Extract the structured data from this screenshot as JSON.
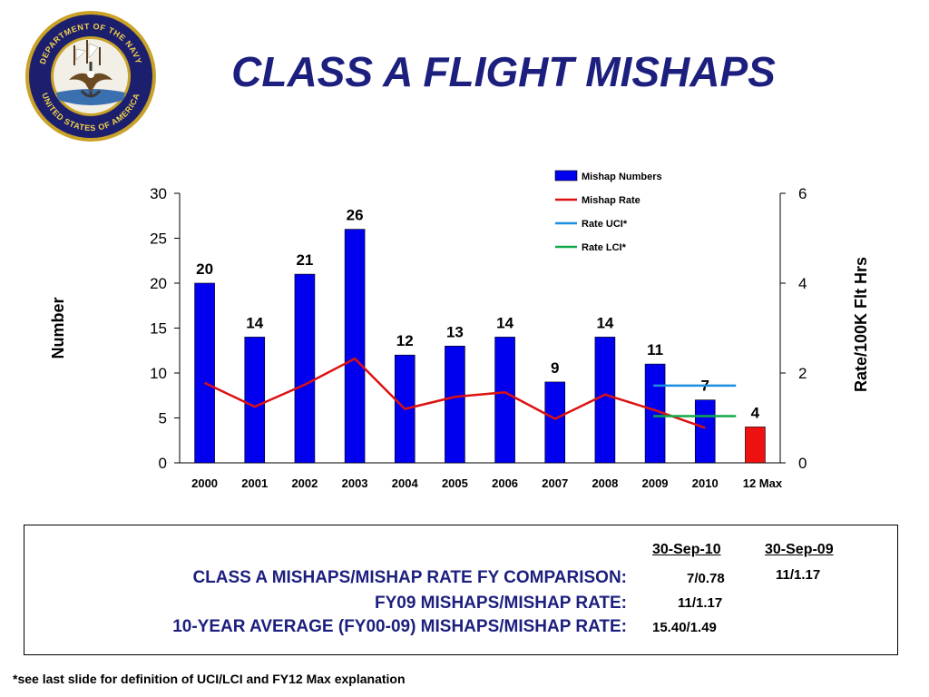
{
  "title": "CLASS A FLIGHT MISHAPS",
  "seal": {
    "outer_text": "DEPARTMENT OF THE NAVY",
    "inner_text": "UNITED STATES OF AMERICA"
  },
  "chart_data": {
    "type": "bar",
    "categories": [
      "2000",
      "2001",
      "2002",
      "2003",
      "2004",
      "2005",
      "2006",
      "2007",
      "2008",
      "2009",
      "2010",
      "12 Max"
    ],
    "series": [
      {
        "name": "Mishap Numbers",
        "type": "bar",
        "axis": "left",
        "values": [
          20,
          14,
          21,
          26,
          12,
          13,
          14,
          9,
          14,
          11,
          7,
          4
        ],
        "data_labels": [
          "20",
          "14",
          "21",
          "26",
          "12",
          "13",
          "14",
          "9",
          "14",
          "11",
          "7",
          "4"
        ],
        "color": "#0000ee",
        "highlight_color": "#ee1111",
        "highlight_index": 11
      },
      {
        "name": "Mishap Rate",
        "type": "line",
        "axis": "right",
        "values": [
          1.78,
          1.25,
          1.74,
          2.32,
          1.2,
          1.47,
          1.57,
          0.98,
          1.52,
          1.17,
          0.78,
          null
        ],
        "color": "#dd1111"
      },
      {
        "name": "Rate UCI*",
        "type": "segment",
        "axis": "right",
        "x_start": "2009",
        "x_end": "2010",
        "value": 1.72,
        "color": "#1b8fe0"
      },
      {
        "name": "Rate LCI*",
        "type": "segment",
        "axis": "right",
        "x_start": "2009",
        "x_end": "2010",
        "value": 1.04,
        "color": "#11a84a"
      }
    ],
    "ylabel": "Number",
    "y2label": "Rate/100K Flt Hrs",
    "ylim": [
      0,
      30
    ],
    "y2lim": [
      0,
      6
    ],
    "yticks": [
      "0",
      "5",
      "10",
      "15",
      "20",
      "25",
      "30"
    ],
    "y2ticks": [
      "0",
      "2",
      "4",
      "6"
    ],
    "grid": false,
    "legend_position": "top-right"
  },
  "comparison": {
    "col1_header": "30-Sep-10",
    "col2_header": "30-Sep-09",
    "rows": [
      {
        "label": "CLASS A MISHAPS/MISHAP RATE FY COMPARISON:",
        "value1": "7/0.78",
        "value2": "11/1.17"
      },
      {
        "label": "FY09 MISHAPS/MISHAP RATE:",
        "value1": "11/1.17",
        "value2": ""
      },
      {
        "label": "10-YEAR AVERAGE (FY00-09) MISHAPS/MISHAP RATE:",
        "value1": "15.40/1.49",
        "value2": ""
      }
    ]
  },
  "footnote": "*see last slide for definition of UCI/LCI and FY12 Max explanation"
}
